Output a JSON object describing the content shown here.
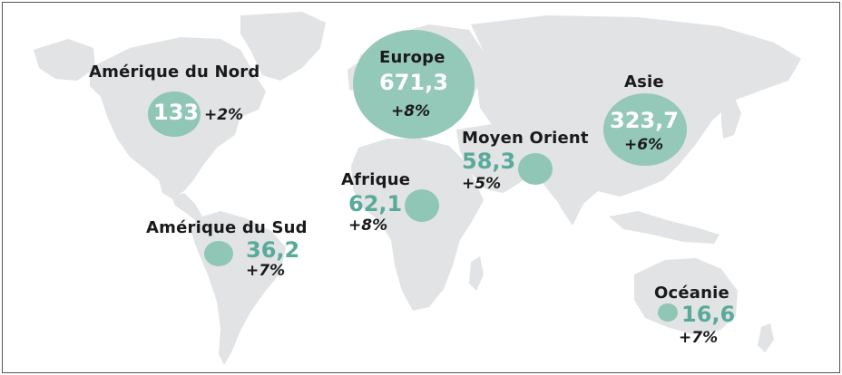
{
  "colors": {
    "land": "#e1e3e4",
    "bubble": "#8fc6b6",
    "value_text": "#5aaa9c",
    "label_text": "#1a1a1a"
  },
  "regions": {
    "north_america": {
      "name": "Amérique du Nord",
      "value": "133",
      "change": "+2%"
    },
    "europe": {
      "name": "Europe",
      "value": "671,3",
      "change": "+8%"
    },
    "asia": {
      "name": "Asie",
      "value": "323,7",
      "change": "+6%"
    },
    "middle_east": {
      "name": "Moyen Orient",
      "value": "58,3",
      "change": "+5%"
    },
    "africa": {
      "name": "Afrique",
      "value": "62,1",
      "change": "+8%"
    },
    "south_america": {
      "name": "Amérique du Sud",
      "value": "36,2",
      "change": "+7%"
    },
    "oceania": {
      "name": "Océanie",
      "value": "16,6",
      "change": "+7%"
    }
  }
}
